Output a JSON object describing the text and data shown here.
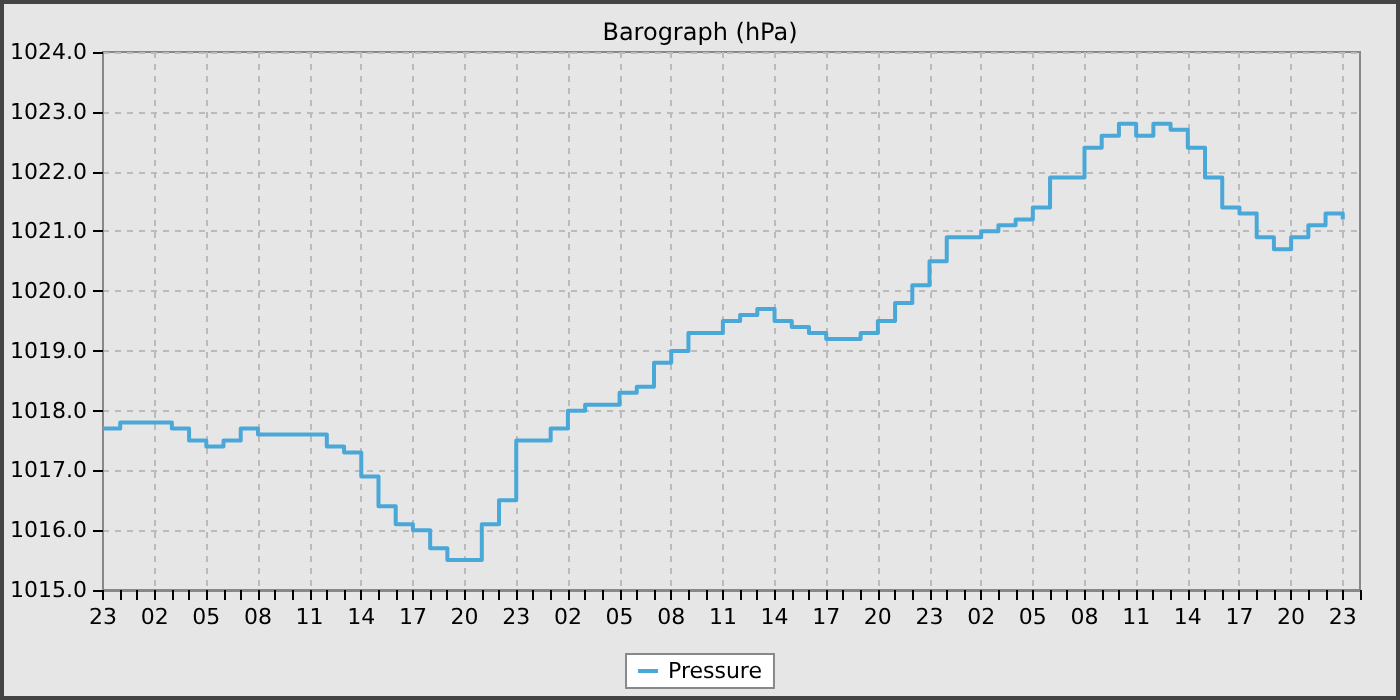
{
  "chart_data": {
    "type": "step",
    "title": "Barograph (hPa)",
    "categories": [
      "23",
      null,
      null,
      "02",
      null,
      null,
      "05",
      null,
      null,
      "08",
      null,
      null,
      "11",
      null,
      null,
      "14",
      null,
      null,
      "17",
      null,
      null,
      "20",
      null,
      null,
      "23",
      null,
      null,
      "02",
      null,
      null,
      "05",
      null,
      null,
      "08",
      null,
      null,
      "11",
      null,
      null,
      "14",
      null,
      null,
      "17",
      null,
      null,
      "20",
      null,
      null,
      "23",
      null,
      null,
      "02",
      null,
      null,
      "05",
      null,
      null,
      "08",
      null,
      null,
      "11",
      null,
      null,
      "14",
      null,
      null,
      "17",
      null,
      null,
      "20",
      null,
      null,
      "23",
      null
    ],
    "series": [
      {
        "name": "Pressure",
        "color": "#4aa8d8",
        "values": [
          1017.7,
          1017.8,
          1017.8,
          1017.8,
          1017.7,
          1017.5,
          1017.4,
          1017.5,
          1017.7,
          1017.6,
          1017.6,
          1017.6,
          1017.6,
          1017.4,
          1017.3,
          1016.9,
          1016.4,
          1016.1,
          1016.0,
          1015.7,
          1015.5,
          1015.5,
          1016.1,
          1016.5,
          1017.5,
          1017.5,
          1017.7,
          1018.0,
          1018.1,
          1018.1,
          1018.3,
          1018.4,
          1018.8,
          1019.0,
          1019.3,
          1019.3,
          1019.5,
          1019.6,
          1019.7,
          1019.5,
          1019.4,
          1019.3,
          1019.2,
          1019.2,
          1019.3,
          1019.5,
          1019.8,
          1020.1,
          1020.5,
          1020.9,
          1020.9,
          1021.0,
          1021.1,
          1021.2,
          1021.4,
          1021.9,
          1021.9,
          1022.4,
          1022.6,
          1022.8,
          1022.6,
          1022.8,
          1022.7,
          1022.4,
          1021.9,
          1021.4,
          1021.3,
          1020.9,
          1020.7,
          1020.9,
          1021.1,
          1021.3,
          1021.2,
          null
        ]
      }
    ],
    "ylim": [
      1015,
      1024
    ],
    "yticks": [
      {
        "value": 1015,
        "label": "1015.0"
      },
      {
        "value": 1016,
        "label": "1016.0"
      },
      {
        "value": 1017,
        "label": "1017.0"
      },
      {
        "value": 1018,
        "label": "1018.0"
      },
      {
        "value": 1019,
        "label": "1019.0"
      },
      {
        "value": 1020,
        "label": "1020.0"
      },
      {
        "value": 1021,
        "label": "1021.0"
      },
      {
        "value": 1022,
        "label": "1022.0"
      },
      {
        "value": 1023,
        "label": "1023.0"
      },
      {
        "value": 1024,
        "label": "1024.0"
      }
    ],
    "grid": true,
    "legend": "bottom",
    "marker": "none",
    "line_style": "solid"
  }
}
